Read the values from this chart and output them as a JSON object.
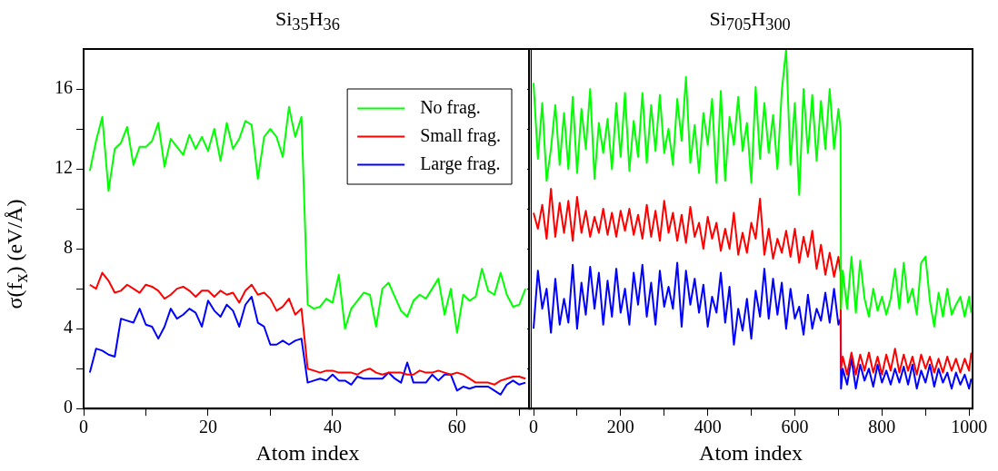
{
  "chart_data": [
    {
      "type": "line",
      "title": "Si$_{35}$H$_{36}$",
      "xlabel": "Atom index",
      "ylabel": "σ(f$_{x}$)   (eV/Å)",
      "x": [
        1,
        2,
        3,
        4,
        5,
        6,
        7,
        8,
        9,
        10,
        11,
        12,
        13,
        14,
        15,
        16,
        17,
        18,
        19,
        20,
        21,
        22,
        23,
        24,
        25,
        26,
        27,
        28,
        29,
        30,
        31,
        32,
        33,
        34,
        35,
        36,
        37,
        38,
        39,
        40,
        41,
        42,
        43,
        44,
        45,
        46,
        47,
        48,
        49,
        50,
        51,
        52,
        53,
        54,
        55,
        56,
        57,
        58,
        59,
        60,
        61,
        62,
        63,
        64,
        65,
        66,
        67,
        68,
        69,
        70,
        71
      ],
      "series": [
        {
          "name": "No frag.",
          "color": "#00ff00",
          "values": [
            11.9,
            13.4,
            14.6,
            10.9,
            13.0,
            13.3,
            14.1,
            12.2,
            13.1,
            13.1,
            13.4,
            14.3,
            12.1,
            13.5,
            13.1,
            12.7,
            13.7,
            13.0,
            13.6,
            12.9,
            14.0,
            12.4,
            14.3,
            13.0,
            13.5,
            14.4,
            14.2,
            11.5,
            13.6,
            14.0,
            13.6,
            12.6,
            15.1,
            13.6,
            14.6,
            5.2,
            5.0,
            5.1,
            5.5,
            5.3,
            6.7,
            4.0,
            5.0,
            5.4,
            5.8,
            5.7,
            4.1,
            6.0,
            6.3,
            5.6,
            4.9,
            4.6,
            5.4,
            5.7,
            5.5,
            6.0,
            6.5,
            4.7,
            6.0,
            3.8,
            5.7,
            5.4,
            5.6,
            7.0,
            5.9,
            5.7,
            6.8,
            5.7,
            5.1,
            5.2,
            6.0
          ]
        },
        {
          "name": "Small frag.",
          "color": "#ff0000",
          "values": [
            6.2,
            6.0,
            6.8,
            6.4,
            5.8,
            5.9,
            6.2,
            6.0,
            5.8,
            6.2,
            6.1,
            5.9,
            5.5,
            5.7,
            6.0,
            6.1,
            5.9,
            5.6,
            5.9,
            5.9,
            5.6,
            5.9,
            5.7,
            5.8,
            5.3,
            5.9,
            6.2,
            5.7,
            5.8,
            5.5,
            4.9,
            5.1,
            5.5,
            4.7,
            5.0,
            2.0,
            1.9,
            1.8,
            1.9,
            1.9,
            1.8,
            1.8,
            1.8,
            1.7,
            1.9,
            2.0,
            1.8,
            1.7,
            1.8,
            1.8,
            1.8,
            1.7,
            1.7,
            1.9,
            1.8,
            1.8,
            1.9,
            1.8,
            1.7,
            1.8,
            1.7,
            1.5,
            1.3,
            1.3,
            1.3,
            1.2,
            1.4,
            1.5,
            1.6,
            1.6,
            1.5
          ]
        },
        {
          "name": "Large frag.",
          "color": "#0000ff",
          "values": [
            1.8,
            3.0,
            2.9,
            2.7,
            2.6,
            4.5,
            4.4,
            4.3,
            5.0,
            4.2,
            4.1,
            3.5,
            4.1,
            5.0,
            4.5,
            4.7,
            5.0,
            4.8,
            4.1,
            5.4,
            4.9,
            4.6,
            5.2,
            4.9,
            4.1,
            5.2,
            5.6,
            4.3,
            4.1,
            3.2,
            3.2,
            3.4,
            3.2,
            3.4,
            3.5,
            1.3,
            1.4,
            1.5,
            1.4,
            1.7,
            1.4,
            1.4,
            1.2,
            1.6,
            1.5,
            1.5,
            1.5,
            1.5,
            1.8,
            1.5,
            1.3,
            2.3,
            1.3,
            1.3,
            1.3,
            1.7,
            1.4,
            1.7,
            1.7,
            0.9,
            1.1,
            1.0,
            1.1,
            1.1,
            1.1,
            0.9,
            0.7,
            1.2,
            1.4,
            1.2,
            1.3
          ]
        }
      ],
      "xlim": [
        0,
        72
      ],
      "xticks": [
        0,
        {
          "value": 10,
          "label": null
        },
        20,
        {
          "value": 30,
          "label": null
        },
        40,
        {
          "value": 50,
          "label": null
        },
        60,
        {
          "value": 70,
          "label": null
        }
      ],
      "ylim": [
        0,
        18
      ],
      "yticks": [
        0,
        {
          "value": 2,
          "label": null
        },
        4,
        {
          "value": 6,
          "label": null
        },
        8,
        {
          "value": 10,
          "label": null
        },
        12,
        {
          "value": 14,
          "label": null
        },
        16
      ],
      "legend": "top right"
    },
    {
      "type": "line",
      "title": "Si$_{705}$H$_{300}$",
      "xlabel": "Atom index",
      "series": [
        {
          "color": "#00ff00",
          "x": [
            0,
            10,
            20,
            30,
            40,
            50,
            60,
            70,
            80,
            90,
            100,
            110,
            120,
            130,
            140,
            150,
            160,
            170,
            180,
            190,
            200,
            210,
            220,
            230,
            240,
            250,
            260,
            270,
            280,
            290,
            300,
            310,
            320,
            330,
            340,
            350,
            360,
            370,
            380,
            390,
            400,
            410,
            420,
            430,
            440,
            450,
            460,
            470,
            480,
            490,
            500,
            510,
            520,
            530,
            540,
            550,
            560,
            570,
            580,
            590,
            600,
            610,
            620,
            630,
            640,
            650,
            660,
            670,
            680,
            690,
            700,
            705,
            706,
            710,
            720,
            730,
            740,
            750,
            760,
            770,
            780,
            790,
            800,
            810,
            820,
            830,
            840,
            850,
            860,
            870,
            880,
            890,
            900,
            910,
            920,
            930,
            940,
            950,
            960,
            970,
            980,
            990,
            1000,
            1005
          ],
          "values": [
            16.3,
            12.5,
            15.3,
            11.4,
            13.0,
            15.2,
            12.2,
            14.8,
            12.0,
            15.6,
            11.8,
            15.0,
            13.0,
            16.0,
            11.5,
            14.3,
            12.8,
            14.5,
            12.0,
            15.3,
            12.6,
            15.8,
            11.9,
            14.4,
            12.6,
            15.8,
            12.3,
            15.2,
            12.9,
            15.7,
            12.8,
            14.0,
            12.2,
            15.5,
            13.4,
            16.6,
            12.3,
            14.2,
            11.8,
            14.8,
            13.2,
            15.5,
            11.3,
            15.9,
            11.4,
            14.6,
            13.2,
            15.6,
            12.9,
            14.3,
            11.3,
            16.1,
            12.5,
            15.3,
            12.8,
            14.7,
            12.0,
            15.9,
            18.0,
            12.2,
            15.3,
            10.7,
            16.0,
            12.8,
            15.7,
            12.4,
            15.4,
            13.0,
            16.0,
            13.0,
            15.0,
            14.0,
            5.0,
            6.9,
            5.0,
            7.6,
            4.8,
            7.4,
            5.5,
            4.6,
            6.0,
            4.9,
            5.6,
            4.7,
            5.5,
            7.0,
            5.0,
            7.3,
            5.3,
            6.0,
            4.7,
            7.3,
            7.6,
            5.4,
            4.1,
            5.8,
            4.6,
            6.0,
            4.7,
            5.2,
            5.6,
            4.6,
            5.6,
            4.8
          ]
        },
        {
          "color": "#ff0000",
          "x": [
            0,
            10,
            20,
            30,
            40,
            50,
            60,
            70,
            80,
            90,
            100,
            110,
            120,
            130,
            140,
            150,
            160,
            170,
            180,
            190,
            200,
            210,
            220,
            230,
            240,
            250,
            260,
            270,
            280,
            290,
            300,
            310,
            320,
            330,
            340,
            350,
            360,
            370,
            380,
            390,
            400,
            410,
            420,
            430,
            440,
            450,
            460,
            470,
            480,
            490,
            500,
            510,
            520,
            530,
            540,
            550,
            560,
            570,
            580,
            590,
            600,
            610,
            620,
            630,
            640,
            650,
            660,
            670,
            680,
            690,
            700,
            705,
            706,
            710,
            720,
            730,
            740,
            750,
            760,
            770,
            780,
            790,
            800,
            810,
            820,
            830,
            840,
            850,
            860,
            870,
            880,
            890,
            900,
            910,
            920,
            930,
            940,
            950,
            960,
            970,
            980,
            990,
            1000,
            1005
          ],
          "values": [
            9.8,
            9.0,
            10.2,
            8.5,
            11.0,
            8.6,
            10.3,
            8.8,
            10.4,
            8.4,
            10.6,
            8.8,
            9.9,
            8.6,
            9.6,
            8.8,
            10.0,
            8.7,
            9.8,
            8.6,
            9.9,
            8.9,
            10.0,
            8.7,
            9.7,
            8.5,
            10.2,
            8.6,
            9.9,
            8.4,
            10.4,
            8.8,
            9.8,
            8.4,
            9.7,
            8.3,
            10.1,
            8.6,
            9.3,
            8.0,
            9.6,
            8.5,
            9.3,
            7.9,
            9.0,
            8.0,
            9.8,
            7.7,
            8.8,
            7.8,
            9.3,
            8.5,
            10.5,
            7.7,
            9.0,
            7.5,
            8.5,
            7.8,
            8.9,
            7.6,
            9.0,
            7.3,
            8.6,
            7.6,
            8.9,
            7.0,
            8.2,
            6.7,
            7.8,
            6.6,
            7.6,
            6.8,
            2.0,
            2.6,
            1.7,
            2.8,
            1.7,
            2.7,
            1.9,
            2.8,
            1.8,
            2.6,
            1.7,
            2.7,
            1.9,
            3.0,
            1.8,
            2.7,
            1.9,
            2.6,
            1.7,
            2.7,
            2.0,
            2.6,
            1.8,
            2.5,
            1.8,
            2.6,
            1.9,
            2.5,
            1.8,
            2.5,
            1.9,
            2.8
          ]
        },
        {
          "color": "#0000ff",
          "x": [
            0,
            10,
            20,
            30,
            40,
            50,
            60,
            70,
            80,
            90,
            100,
            110,
            120,
            130,
            140,
            150,
            160,
            170,
            180,
            190,
            200,
            210,
            220,
            230,
            240,
            250,
            260,
            270,
            280,
            290,
            300,
            310,
            320,
            330,
            340,
            350,
            360,
            370,
            380,
            390,
            400,
            410,
            420,
            430,
            440,
            450,
            460,
            470,
            480,
            490,
            500,
            510,
            520,
            530,
            540,
            550,
            560,
            570,
            580,
            590,
            600,
            610,
            620,
            630,
            640,
            650,
            660,
            670,
            680,
            690,
            700,
            705,
            706,
            710,
            720,
            730,
            740,
            750,
            760,
            770,
            780,
            790,
            800,
            810,
            820,
            830,
            840,
            850,
            860,
            870,
            880,
            890,
            900,
            910,
            920,
            930,
            940,
            950,
            960,
            970,
            980,
            990,
            1000,
            1005
          ],
          "values": [
            4.0,
            6.9,
            5.0,
            6.0,
            3.8,
            6.5,
            4.2,
            5.5,
            4.3,
            7.2,
            4.0,
            6.3,
            4.7,
            7.1,
            5.0,
            6.8,
            4.2,
            6.4,
            4.6,
            7.0,
            4.8,
            6.0,
            4.2,
            6.8,
            5.2,
            7.2,
            4.6,
            6.3,
            4.2,
            6.9,
            5.1,
            6.1,
            5.0,
            7.3,
            4.1,
            6.9,
            5.2,
            6.5,
            4.8,
            6.2,
            4.1,
            5.6,
            4.8,
            6.8,
            4.3,
            6.1,
            3.2,
            5.0,
            3.9,
            5.5,
            3.5,
            5.9,
            4.6,
            7.0,
            4.5,
            6.5,
            4.7,
            6.3,
            4.0,
            6.0,
            4.5,
            5.1,
            3.7,
            5.7,
            4.0,
            5.0,
            4.4,
            5.8,
            4.3,
            6.0,
            4.2,
            4.5,
            1.0,
            2.0,
            1.2,
            2.5,
            1.0,
            2.2,
            1.4,
            2.0,
            1.1,
            2.2,
            1.3,
            1.9,
            1.2,
            2.0,
            1.3,
            2.1,
            1.2,
            2.2,
            1.0,
            1.9,
            1.3,
            2.2,
            1.1,
            2.0,
            1.3,
            1.8,
            1.0,
            1.8,
            1.2,
            1.7,
            1.0,
            1.5
          ]
        }
      ],
      "xlim": [
        -10,
        1008
      ],
      "xticks": [
        0,
        {
          "value": 100,
          "label": null
        },
        200,
        {
          "value": 300,
          "label": null
        },
        400,
        {
          "value": 500,
          "label": null
        },
        600,
        {
          "value": 700,
          "label": null
        },
        800,
        {
          "value": 900,
          "label": null
        },
        1000
      ],
      "ylim": [
        0,
        18
      ],
      "yticks": [
        {
          "value": 0,
          "label": null
        },
        {
          "value": 2,
          "label": null
        },
        {
          "value": 4,
          "label": null
        },
        {
          "value": 6,
          "label": null
        },
        {
          "value": 8,
          "label": null
        },
        {
          "value": 10,
          "label": null
        },
        {
          "value": 12,
          "label": null
        },
        {
          "value": 14,
          "label": null
        },
        {
          "value": 16,
          "label": null
        }
      ],
      "tick_labels": "x"
    }
  ]
}
